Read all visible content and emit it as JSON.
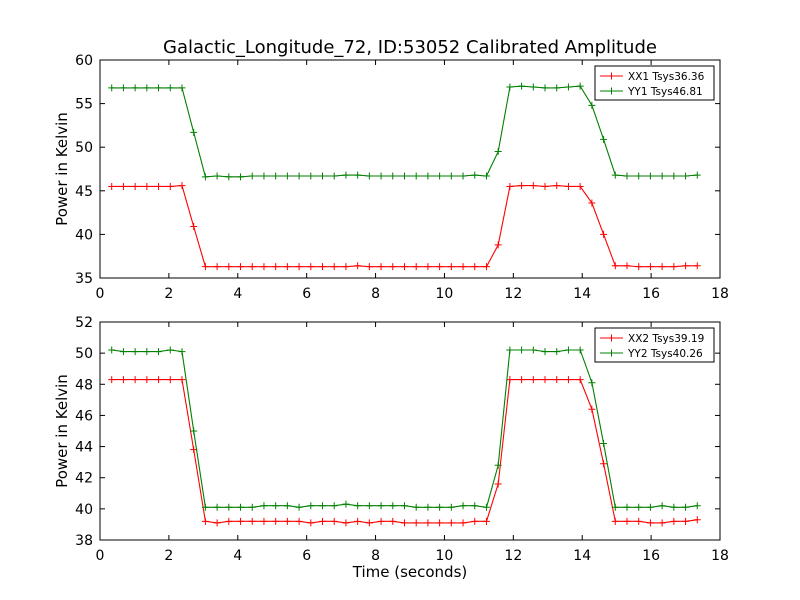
{
  "title": "Galactic_Longitude_72, ID:53052 Calibrated Amplitude",
  "colors": {
    "red": "#ff0000",
    "green": "#008000"
  },
  "chart_data": [
    {
      "type": "line",
      "xlabel": "",
      "ylabel": "Power in Kelvin",
      "xlim": [
        0,
        18
      ],
      "ylim": [
        35,
        60
      ],
      "xticks": [
        0,
        2,
        4,
        6,
        8,
        10,
        12,
        14,
        16,
        18
      ],
      "yticks": [
        35,
        40,
        45,
        50,
        55,
        60
      ],
      "legend_position": "top-right",
      "x": [
        0.34,
        0.68,
        1.02,
        1.36,
        1.7,
        2.04,
        2.38,
        2.72,
        3.06,
        3.4,
        3.74,
        4.08,
        4.42,
        4.76,
        5.1,
        5.44,
        5.78,
        6.12,
        6.46,
        6.8,
        7.14,
        7.48,
        7.82,
        8.16,
        8.5,
        8.84,
        9.18,
        9.52,
        9.86,
        10.2,
        10.54,
        10.88,
        11.22,
        11.56,
        11.9,
        12.24,
        12.58,
        12.92,
        13.26,
        13.6,
        13.94,
        14.28,
        14.62,
        14.96,
        15.3,
        15.64,
        15.98,
        16.32,
        16.66,
        17.0,
        17.34
      ],
      "series": [
        {
          "name": "XX1 Tsys36.36",
          "color": "#ff0000",
          "values": [
            45.5,
            45.5,
            45.5,
            45.5,
            45.5,
            45.5,
            45.6,
            40.9,
            36.3,
            36.3,
            36.3,
            36.3,
            36.3,
            36.3,
            36.3,
            36.3,
            36.3,
            36.3,
            36.3,
            36.3,
            36.3,
            36.4,
            36.3,
            36.3,
            36.3,
            36.3,
            36.3,
            36.3,
            36.3,
            36.3,
            36.3,
            36.3,
            36.3,
            38.8,
            45.5,
            45.6,
            45.6,
            45.5,
            45.6,
            45.5,
            45.5,
            43.6,
            40.0,
            36.4,
            36.4,
            36.3,
            36.3,
            36.3,
            36.3,
            36.4,
            36.4
          ]
        },
        {
          "name": "YY1 Tsys46.81",
          "color": "#008000",
          "values": [
            56.8,
            56.8,
            56.8,
            56.8,
            56.8,
            56.8,
            56.8,
            51.7,
            46.6,
            46.7,
            46.6,
            46.6,
            46.7,
            46.7,
            46.7,
            46.7,
            46.7,
            46.7,
            46.7,
            46.7,
            46.8,
            46.8,
            46.7,
            46.7,
            46.7,
            46.7,
            46.7,
            46.7,
            46.7,
            46.7,
            46.7,
            46.8,
            46.7,
            49.5,
            56.9,
            57.0,
            56.9,
            56.8,
            56.8,
            56.9,
            57.0,
            54.8,
            50.9,
            46.8,
            46.7,
            46.7,
            46.7,
            46.7,
            46.7,
            46.7,
            46.8
          ]
        }
      ]
    },
    {
      "type": "line",
      "xlabel": "Time (seconds)",
      "ylabel": "Power in Kelvin",
      "xlim": [
        0,
        18
      ],
      "ylim": [
        38,
        52
      ],
      "xticks": [
        0,
        2,
        4,
        6,
        8,
        10,
        12,
        14,
        16,
        18
      ],
      "yticks": [
        38,
        40,
        42,
        44,
        46,
        48,
        50,
        52
      ],
      "legend_position": "top-right",
      "x": [
        0.34,
        0.68,
        1.02,
        1.36,
        1.7,
        2.04,
        2.38,
        2.72,
        3.06,
        3.4,
        3.74,
        4.08,
        4.42,
        4.76,
        5.1,
        5.44,
        5.78,
        6.12,
        6.46,
        6.8,
        7.14,
        7.48,
        7.82,
        8.16,
        8.5,
        8.84,
        9.18,
        9.52,
        9.86,
        10.2,
        10.54,
        10.88,
        11.22,
        11.56,
        11.9,
        12.24,
        12.58,
        12.92,
        13.26,
        13.6,
        13.94,
        14.28,
        14.62,
        14.96,
        15.3,
        15.64,
        15.98,
        16.32,
        16.66,
        17.0,
        17.34
      ],
      "series": [
        {
          "name": "XX2 Tsys39.19",
          "color": "#ff0000",
          "values": [
            48.3,
            48.3,
            48.3,
            48.3,
            48.3,
            48.3,
            48.3,
            43.8,
            39.2,
            39.1,
            39.2,
            39.2,
            39.2,
            39.2,
            39.2,
            39.2,
            39.2,
            39.1,
            39.2,
            39.2,
            39.1,
            39.2,
            39.1,
            39.2,
            39.2,
            39.1,
            39.1,
            39.1,
            39.1,
            39.1,
            39.1,
            39.2,
            39.2,
            41.6,
            48.3,
            48.3,
            48.3,
            48.3,
            48.3,
            48.3,
            48.3,
            46.4,
            42.9,
            39.2,
            39.2,
            39.2,
            39.1,
            39.1,
            39.2,
            39.2,
            39.3
          ]
        },
        {
          "name": "YY2 Tsys40.26",
          "color": "#008000",
          "values": [
            50.2,
            50.1,
            50.1,
            50.1,
            50.1,
            50.2,
            50.1,
            45.0,
            40.1,
            40.1,
            40.1,
            40.1,
            40.1,
            40.2,
            40.2,
            40.2,
            40.1,
            40.2,
            40.2,
            40.2,
            40.3,
            40.2,
            40.2,
            40.2,
            40.2,
            40.2,
            40.1,
            40.1,
            40.1,
            40.1,
            40.2,
            40.2,
            40.1,
            42.8,
            50.2,
            50.2,
            50.2,
            50.1,
            50.1,
            50.2,
            50.2,
            48.1,
            44.2,
            40.1,
            40.1,
            40.1,
            40.1,
            40.2,
            40.1,
            40.1,
            40.2
          ]
        }
      ]
    }
  ]
}
